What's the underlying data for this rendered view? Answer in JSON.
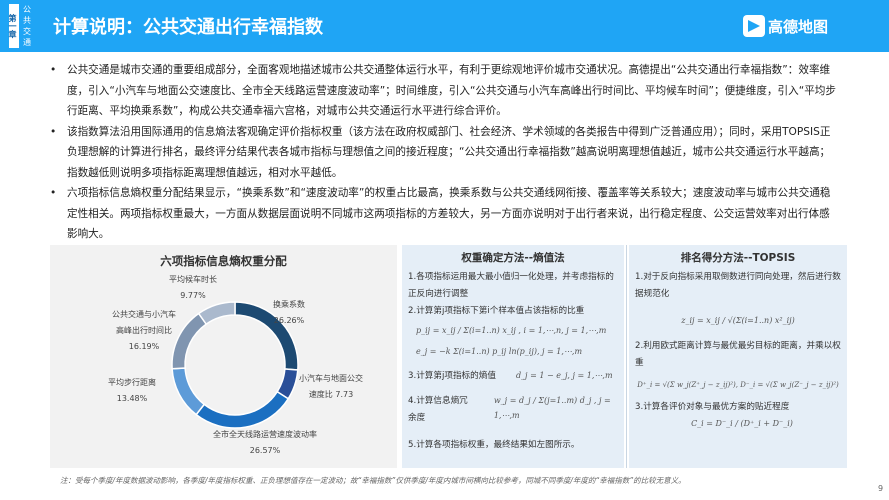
{
  "header": {
    "chapter": "第一章",
    "section": "公共交通",
    "title": "计算说明：公共交通出行幸福指数",
    "logo": "高德地图"
  },
  "bullets": [
    "公共交通是城市交通的重要组成部分，全面客观地描述城市公共交通整体运行水平，有利于更综观地评价城市交通状况。高德提出“公共交通出行幸福指数”：效率维度，引入“小汽车与地面公交速度比、全市全天线路运营速度波动率”；时间维度，引入“公共交通与小汽车高峰出行时间比、平均候车时间”；便捷维度，引入“平均步行距离、平均换乘系数”，构成公共交通幸福六宫格，对城市公共交通运行水平进行综合评价。",
    "该指数算法沿用国际通用的信息熵法客观确定评价指标权重（该方法在政府权威部门、社会经济、学术领域的各类报告中得到广泛普通应用）；同时，采用TOPSIS正负理想解的计算进行排名，最终评分结果代表各城市指标与理想值之间的接近程度；“公共交通出行幸福指数”越高说明离理想值越近，城市公共交通运行水平越高；指数越低则说明多项指标距离理想值越远，相对水平越低。",
    "六项指标信息熵权重分配结果显示，“换乘系数”和“速度波动率”的权重占比最高，换乘系数与公共交通线网衔接、覆盖率等关系较大；速度波动率与城市公共交通稳定性相关。两项指标权重最大，一方面从数据层面说明不同城市这两项指标的方差较大，另一方面亦说明对于出行者来说，出行稳定程度、公交运营效率对出行体感影响大。"
  ],
  "chart_data": {
    "type": "pie",
    "title": "六项指标信息熵权重分配",
    "categories": [
      "换乘系数",
      "小汽车与地面公交速度比",
      "全市全天线路运营速度波动率",
      "平均步行距离",
      "公共交通与小汽车高峰出行时间比",
      "平均候车时长"
    ],
    "labels": [
      "换乘系数",
      "小汽车与地面公交速度比 7.73",
      "全市全天线路运营速度波动率",
      "平均步行距离",
      "公共交通与小汽车高峰出行时间比 16.19%",
      "平均候车时长"
    ],
    "value_labels": [
      "26.26%",
      "",
      "26.57%",
      "13.48%",
      "",
      "9.77%"
    ],
    "values": [
      26.26,
      7.73,
      26.57,
      13.48,
      16.19,
      9.77
    ],
    "colors": [
      "#1d4a72",
      "#2a4f98",
      "#1b6fc1",
      "#5d9bd8",
      "#8095b0",
      "#aab9cd"
    ]
  },
  "entropy": {
    "title": "权重确定方法--熵值法",
    "s1": "1.各项指标运用最大最小值归一化处理，并考虑指标的正反向进行调整",
    "s2": "2.计算第j项指标下第i个样本值占该指标的比重",
    "f1": "p_ij = x_ij / Σ(i=1..n) x_ij ,  i = 1,⋯,n, j = 1,⋯,m",
    "f2": "e_j = −k Σ(i=1..n) p_ij ln(p_ij),  j = 1,⋯,m",
    "s3": "3.计算第j项指标的熵值",
    "f3": "d_j = 1 − e_j,  j = 1,⋯,m",
    "s4": "4.计算信息熵冗余度",
    "f4": "w_j = d_j / Σ(j=1..m) d_j ,  j = 1,⋯,m",
    "s5": "5.计算各项指标权重，最终结果如左图所示。"
  },
  "topsis": {
    "title": "排名得分方法--TOPSIS",
    "s1": "1.对于反向指标采用取倒数进行同向处理，然后进行数据规范化",
    "f1": "z_ij = x_ij / √(Σ(i=1..n) x²_ij)",
    "s2": "2.利用欧式距离计算与最优最劣目标的距离，并乘以权重",
    "f2": "D⁺_i = √(Σ w_j(Z⁺_j − z_ij)²),   D⁻_i = √(Σ w_j(Z⁻_j − z_ij)²)",
    "s3": "3.计算各评价对象与最优方案的贴近程度",
    "f3": "C_i = D⁻_i / (D⁺_i + D⁻_i)"
  },
  "footnote": "注：受每个季度/年度数据波动影响，各季度/年度指标权重、正负理想值存在一定波动；故“幸福指数”仅供季度/年度内城市间横向比较参考，同城不同季度/年度的“幸福指数”的比较无意义。",
  "page_number": "9"
}
